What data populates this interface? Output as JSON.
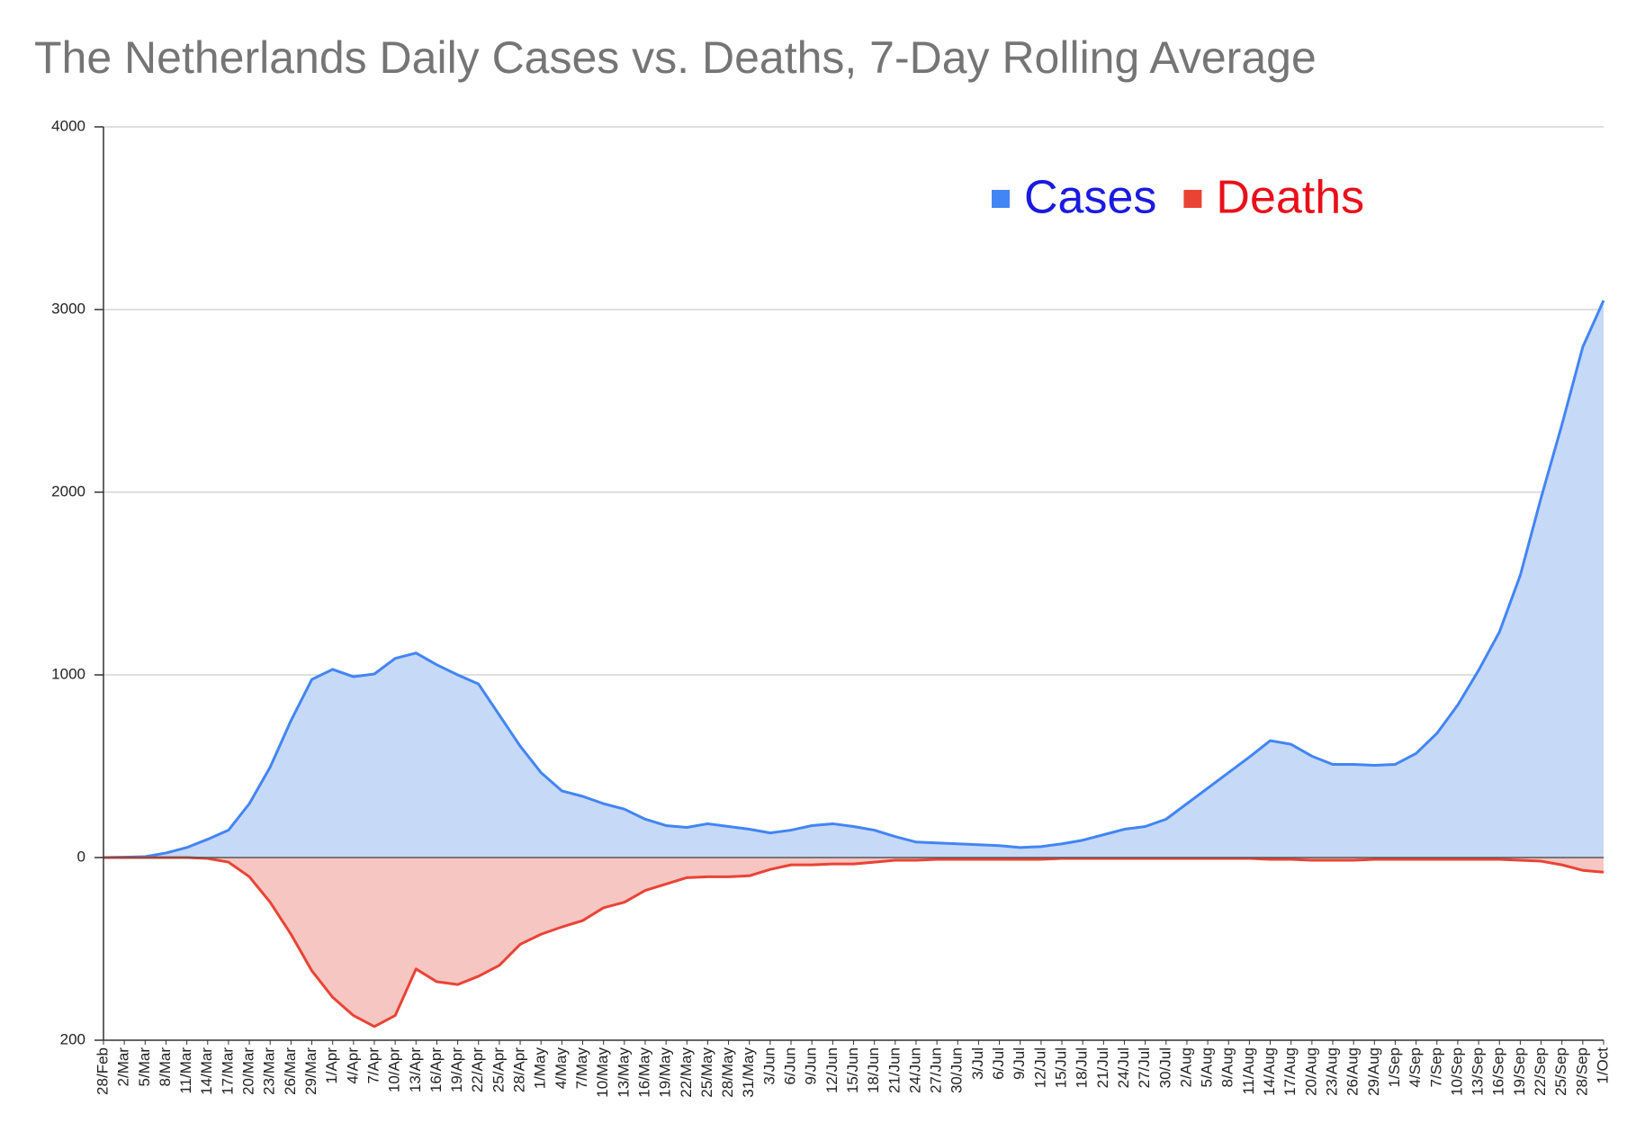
{
  "chart_data": {
    "type": "area",
    "title": "The Netherlands Daily Cases vs. Deaths, 7-Day Rolling Average",
    "categories": [
      "28/Feb",
      "2/Mar",
      "5/Mar",
      "8/Mar",
      "11/Mar",
      "14/Mar",
      "17/Mar",
      "20/Mar",
      "23/Mar",
      "26/Mar",
      "29/Mar",
      "1/Apr",
      "4/Apr",
      "7/Apr",
      "10/Apr",
      "13/Apr",
      "16/Apr",
      "19/Apr",
      "22/Apr",
      "25/Apr",
      "28/Apr",
      "1/May",
      "4/May",
      "7/May",
      "10/May",
      "13/May",
      "16/May",
      "19/May",
      "22/May",
      "25/May",
      "28/May",
      "31/May",
      "3/Jun",
      "6/Jun",
      "9/Jun",
      "12/Jun",
      "15/Jun",
      "18/Jun",
      "21/Jun",
      "24/Jun",
      "27/Jun",
      "30/Jun",
      "3/Jul",
      "6/Jul",
      "9/Jul",
      "12/Jul",
      "15/Jul",
      "18/Jul",
      "21/Jul",
      "24/Jul",
      "27/Jul",
      "30/Jul",
      "2/Aug",
      "5/Aug",
      "8/Aug",
      "11/Aug",
      "14/Aug",
      "17/Aug",
      "20/Aug",
      "23/Aug",
      "26/Aug",
      "29/Aug",
      "1/Sep",
      "4/Sep",
      "7/Sep",
      "10/Sep",
      "13/Sep",
      "16/Sep",
      "19/Sep",
      "22/Sep",
      "25/Sep",
      "28/Sep",
      "1/Oct"
    ],
    "series": [
      {
        "name": "Cases",
        "color": "#4285f4",
        "fill": "#c6d9f7",
        "label_color": "#1a1ae0",
        "values": [
          0,
          2,
          5,
          25,
          55,
          100,
          150,
          295,
          495,
          750,
          975,
          1030,
          990,
          1005,
          1090,
          1120,
          1055,
          1000,
          950,
          780,
          610,
          465,
          365,
          335,
          295,
          265,
          210,
          175,
          165,
          185,
          170,
          155,
          135,
          150,
          175,
          185,
          170,
          150,
          115,
          85,
          80,
          75,
          70,
          65,
          55,
          60,
          75,
          95,
          125,
          155,
          170,
          210,
          295,
          380,
          465,
          550,
          640,
          620,
          555,
          510,
          510,
          505,
          510,
          570,
          680,
          835,
          1025,
          1235,
          1545,
          1970,
          2370,
          2795,
          3050
        ]
      },
      {
        "name": "Deaths",
        "color": "#ea4335",
        "fill": "#f6c6c2",
        "label_color": "#e8101a",
        "axis": "y2",
        "values": [
          0,
          0,
          0,
          0,
          0,
          1,
          5,
          21,
          49,
          84,
          124,
          153,
          173,
          185,
          173,
          122,
          136,
          139,
          130,
          118,
          95,
          84,
          76,
          69,
          55,
          49,
          36,
          29,
          22,
          21,
          21,
          20,
          13,
          8,
          8,
          7,
          7,
          5,
          3,
          3,
          2,
          2,
          2,
          2,
          2,
          2,
          1,
          1,
          1,
          1,
          1,
          1,
          1,
          1,
          1,
          1,
          2,
          2,
          3,
          3,
          3,
          2,
          2,
          2,
          2,
          2,
          2,
          2,
          3,
          4,
          8,
          14,
          16
        ]
      }
    ],
    "ylim": [
      -1000,
      4000
    ],
    "yticks": [
      0,
      1000,
      2000,
      3000,
      4000
    ],
    "y2lim": [
      -800,
      200
    ],
    "y2_inverted": true,
    "y2ticks": [
      200
    ],
    "grid": true,
    "legend": "top-right"
  }
}
